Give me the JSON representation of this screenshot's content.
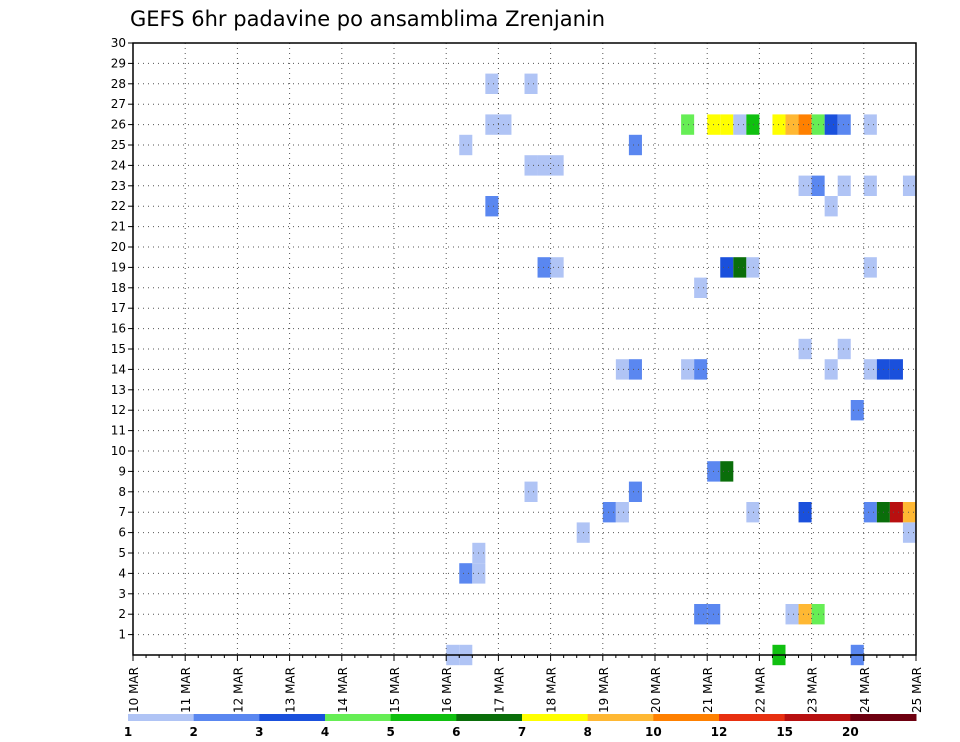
{
  "chart_data": {
    "type": "heatmap",
    "title": "GEFS 6hr padavine po ansamblima Zrenjanin",
    "xlabel": "",
    "ylabel": "",
    "x_tick_labels": [
      "10 MAR",
      "11 MAR",
      "12 MAR",
      "13 MAR",
      "14 MAR",
      "15 MAR",
      "16 MAR",
      "17 MAR",
      "18 MAR",
      "19 MAR",
      "20 MAR",
      "21 MAR",
      "22 MAR",
      "23 MAR",
      "24 MAR",
      "25 MAR"
    ],
    "xlim": [
      0,
      60
    ],
    "ylim": [
      0,
      30
    ],
    "y_ticks": [
      1,
      2,
      3,
      4,
      5,
      6,
      7,
      8,
      9,
      10,
      11,
      12,
      13,
      14,
      15,
      16,
      17,
      18,
      19,
      20,
      21,
      22,
      23,
      24,
      25,
      26,
      27,
      28,
      29,
      30
    ],
    "grid": true,
    "colorbar": {
      "labels": [
        "1",
        "2",
        "3",
        "4",
        "5",
        "6",
        "7",
        "8",
        "10",
        "12",
        "15",
        "20"
      ],
      "colors": [
        "#b0c4f5",
        "#5a87f0",
        "#1a50dc",
        "#66ee55",
        "#10c010",
        "#0a6e0a",
        "#ffff00",
        "#ffb833",
        "#ff8000",
        "#e83010",
        "#b81010",
        "#6e0010"
      ]
    },
    "cells_note": "each cell = [x_step (6h steps from 10 MAR 00), member, color_index]",
    "cells": [
      [
        27,
        28,
        0
      ],
      [
        30,
        28,
        0
      ],
      [
        27,
        26,
        0
      ],
      [
        28,
        26,
        0
      ],
      [
        42,
        26,
        3
      ],
      [
        44,
        26,
        6
      ],
      [
        45,
        26,
        6
      ],
      [
        46,
        26,
        0
      ],
      [
        47,
        26,
        4
      ],
      [
        49,
        26,
        6
      ],
      [
        50,
        26,
        7
      ],
      [
        51,
        26,
        8
      ],
      [
        52,
        26,
        3
      ],
      [
        53,
        26,
        2
      ],
      [
        54,
        26,
        1
      ],
      [
        56,
        26,
        0
      ],
      [
        25,
        25,
        0
      ],
      [
        38,
        25,
        1
      ],
      [
        30,
        24,
        0
      ],
      [
        31,
        24,
        0
      ],
      [
        32,
        24,
        0
      ],
      [
        51,
        23,
        0
      ],
      [
        52,
        23,
        1
      ],
      [
        54,
        23,
        0
      ],
      [
        56,
        23,
        0
      ],
      [
        59,
        23,
        0
      ],
      [
        27,
        22,
        1
      ],
      [
        53,
        22,
        0
      ],
      [
        31,
        19,
        1
      ],
      [
        32,
        19,
        0
      ],
      [
        45,
        19,
        2
      ],
      [
        46,
        19,
        5
      ],
      [
        47,
        19,
        0
      ],
      [
        56,
        19,
        0
      ],
      [
        43,
        18,
        0
      ],
      [
        51,
        15,
        0
      ],
      [
        54,
        15,
        0
      ],
      [
        37,
        14,
        0
      ],
      [
        38,
        14,
        1
      ],
      [
        42,
        14,
        0
      ],
      [
        43,
        14,
        1
      ],
      [
        53,
        14,
        0
      ],
      [
        56,
        14,
        0
      ],
      [
        57,
        14,
        2
      ],
      [
        58,
        14,
        2
      ],
      [
        55,
        12,
        1
      ],
      [
        44,
        9,
        1
      ],
      [
        45,
        9,
        5
      ],
      [
        30,
        8,
        0
      ],
      [
        38,
        8,
        1
      ],
      [
        36,
        7,
        1
      ],
      [
        37,
        7,
        0
      ],
      [
        47,
        7,
        0
      ],
      [
        51,
        7,
        2
      ],
      [
        56,
        7,
        1
      ],
      [
        57,
        7,
        5
      ],
      [
        58,
        7,
        10
      ],
      [
        59,
        7,
        7
      ],
      [
        34,
        6,
        0
      ],
      [
        59,
        6,
        0
      ],
      [
        26,
        5,
        0
      ],
      [
        25,
        4,
        1
      ],
      [
        26,
        4,
        0
      ],
      [
        43,
        2,
        1
      ],
      [
        44,
        2,
        1
      ],
      [
        50,
        2,
        0
      ],
      [
        51,
        2,
        7
      ],
      [
        52,
        2,
        3
      ],
      [
        24,
        0,
        0
      ],
      [
        25,
        0,
        0
      ],
      [
        49,
        0,
        4
      ],
      [
        55,
        0,
        1
      ]
    ]
  }
}
